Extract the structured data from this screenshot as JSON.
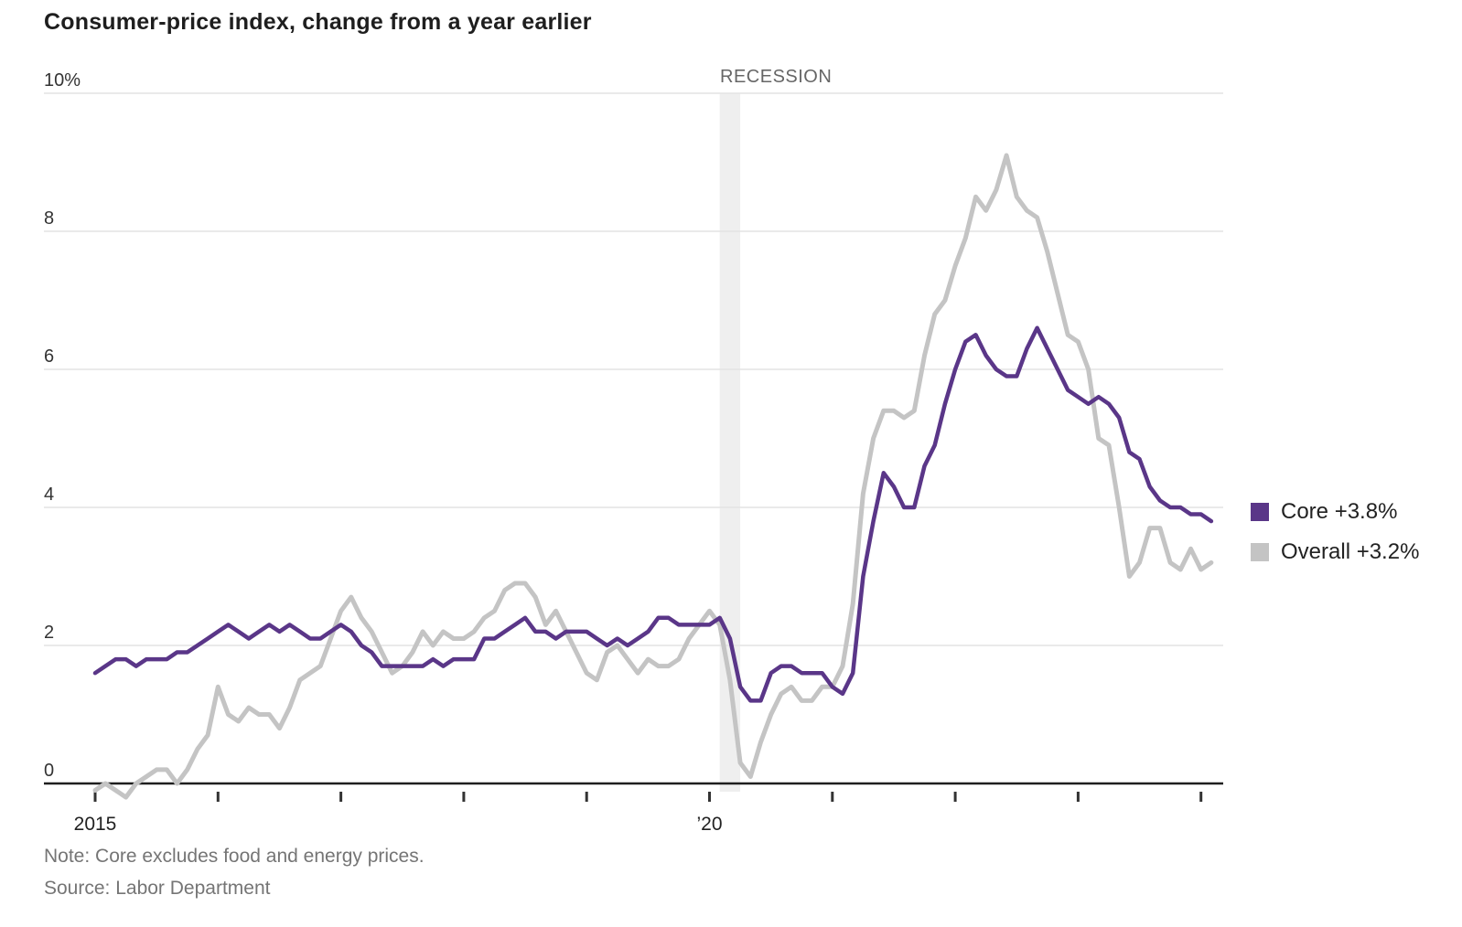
{
  "title": "Consumer-price index, change from a year earlier",
  "recession_label": "RECESSION",
  "note": "Note: Core excludes food and energy prices.",
  "source": "Source: Labor Department",
  "legend": [
    {
      "label": "Core +3.8%",
      "color": "#5a3688"
    },
    {
      "label": "Overall +3.2%",
      "color": "#c4c4c4"
    }
  ],
  "colors": {
    "core_line": "#5a3688",
    "overall_line": "#c4c4c4",
    "gridline": "#e3e3e3",
    "zero_axis": "#1e1e1e",
    "tick": "#333333",
    "axis_text": "#333333",
    "recession_band": "#efefef",
    "recession_text": "#666666"
  },
  "chart_data": {
    "type": "line",
    "title": "Consumer-price index, change from a year earlier",
    "x_start": "2015-01",
    "x_end": "2024-02",
    "frequency": "monthly",
    "ylim": [
      0,
      10
    ],
    "grid": true,
    "legend_position": "right",
    "y_axis": {
      "ticks": [
        {
          "value": 10,
          "label": "10%"
        },
        {
          "value": 8,
          "label": "8"
        },
        {
          "value": 6,
          "label": "6"
        },
        {
          "value": 4,
          "label": "4"
        },
        {
          "value": 2,
          "label": "2"
        },
        {
          "value": 0,
          "label": "0"
        }
      ]
    },
    "x_axis": {
      "ticks": [
        {
          "year": 2015,
          "label": "2015"
        },
        {
          "year": 2016,
          "label": ""
        },
        {
          "year": 2017,
          "label": ""
        },
        {
          "year": 2018,
          "label": ""
        },
        {
          "year": 2019,
          "label": ""
        },
        {
          "year": 2020,
          "label": "’20"
        },
        {
          "year": 2021,
          "label": ""
        },
        {
          "year": 2022,
          "label": ""
        },
        {
          "year": 2023,
          "label": ""
        },
        {
          "year": 2024,
          "label": ""
        }
      ]
    },
    "recession_band": {
      "start": "2020-02",
      "end": "2020-04",
      "label": "RECESSION"
    },
    "series": [
      {
        "name": "Overall",
        "legend_label": "Overall +3.2%",
        "color": "#c4c4c4",
        "latest_value": 3.2,
        "values": [
          -0.1,
          0.0,
          -0.1,
          -0.2,
          0.0,
          0.1,
          0.2,
          0.2,
          0.0,
          0.2,
          0.5,
          0.7,
          1.4,
          1.0,
          0.9,
          1.1,
          1.0,
          1.0,
          0.8,
          1.1,
          1.5,
          1.6,
          1.7,
          2.1,
          2.5,
          2.7,
          2.4,
          2.2,
          1.9,
          1.6,
          1.7,
          1.9,
          2.2,
          2.0,
          2.2,
          2.1,
          2.1,
          2.2,
          2.4,
          2.5,
          2.8,
          2.9,
          2.9,
          2.7,
          2.3,
          2.5,
          2.2,
          1.9,
          1.6,
          1.5,
          1.9,
          2.0,
          1.8,
          1.6,
          1.8,
          1.7,
          1.7,
          1.8,
          2.1,
          2.3,
          2.5,
          2.3,
          1.5,
          0.3,
          0.1,
          0.6,
          1.0,
          1.3,
          1.4,
          1.2,
          1.2,
          1.4,
          1.4,
          1.7,
          2.6,
          4.2,
          5.0,
          5.4,
          5.4,
          5.3,
          5.4,
          6.2,
          6.8,
          7.0,
          7.5,
          7.9,
          8.5,
          8.3,
          8.6,
          9.1,
          8.5,
          8.3,
          8.2,
          7.7,
          7.1,
          6.5,
          6.4,
          6.0,
          5.0,
          4.9,
          4.0,
          3.0,
          3.2,
          3.7,
          3.7,
          3.2,
          3.1,
          3.4,
          3.1,
          3.2
        ]
      },
      {
        "name": "Core",
        "legend_label": "Core +3.8%",
        "color": "#5a3688",
        "latest_value": 3.8,
        "values": [
          1.6,
          1.7,
          1.8,
          1.8,
          1.7,
          1.8,
          1.8,
          1.8,
          1.9,
          1.9,
          2.0,
          2.1,
          2.2,
          2.3,
          2.2,
          2.1,
          2.2,
          2.3,
          2.2,
          2.3,
          2.2,
          2.1,
          2.1,
          2.2,
          2.3,
          2.2,
          2.0,
          1.9,
          1.7,
          1.7,
          1.7,
          1.7,
          1.7,
          1.8,
          1.7,
          1.8,
          1.8,
          1.8,
          2.1,
          2.1,
          2.2,
          2.3,
          2.4,
          2.2,
          2.2,
          2.1,
          2.2,
          2.2,
          2.2,
          2.1,
          2.0,
          2.1,
          2.0,
          2.1,
          2.2,
          2.4,
          2.4,
          2.3,
          2.3,
          2.3,
          2.3,
          2.4,
          2.1,
          1.4,
          1.2,
          1.2,
          1.6,
          1.7,
          1.7,
          1.6,
          1.6,
          1.6,
          1.4,
          1.3,
          1.6,
          3.0,
          3.8,
          4.5,
          4.3,
          4.0,
          4.0,
          4.6,
          4.9,
          5.5,
          6.0,
          6.4,
          6.5,
          6.2,
          6.0,
          5.9,
          5.9,
          6.3,
          6.6,
          6.3,
          6.0,
          5.7,
          5.6,
          5.5,
          5.6,
          5.5,
          5.3,
          4.8,
          4.7,
          4.3,
          4.1,
          4.0,
          4.0,
          3.9,
          3.9,
          3.8
        ]
      }
    ]
  }
}
